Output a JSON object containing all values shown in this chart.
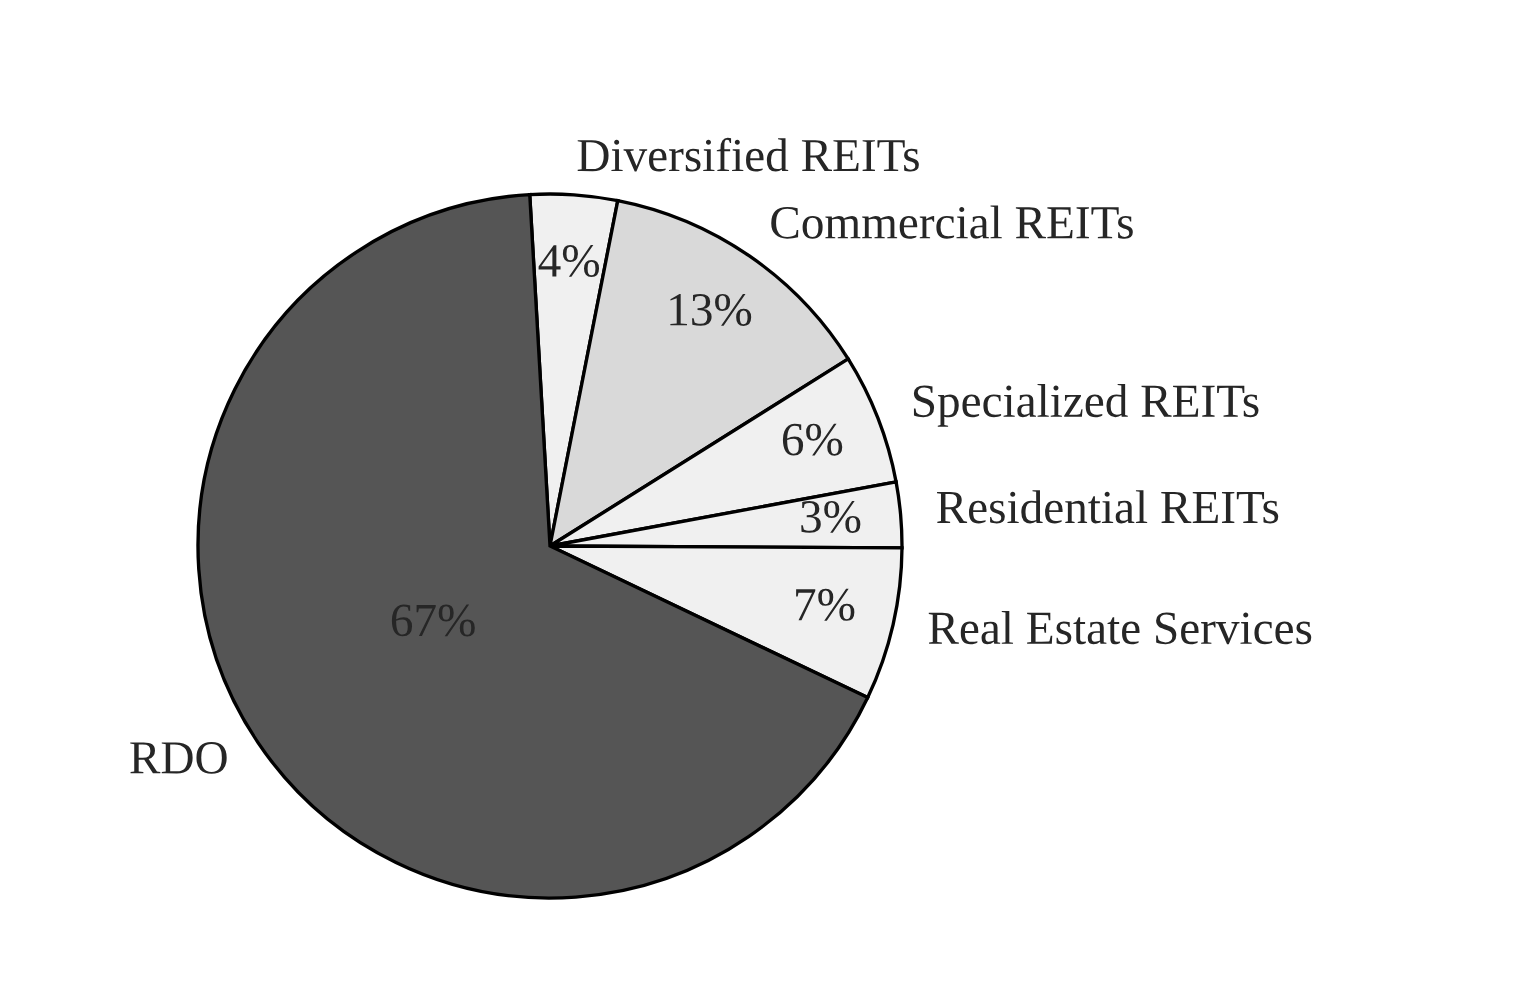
{
  "chart_data": {
    "type": "pie",
    "categories": [
      "Diversified REITs",
      "Commercial REITs",
      "Specialized REITs",
      "Residential REITs",
      "Real Estate Services",
      "RDO"
    ],
    "values": [
      4,
      13,
      6,
      3,
      7,
      67
    ],
    "value_labels": [
      "4%",
      "13%",
      "6%",
      "3%",
      "7%",
      "67%"
    ],
    "colors": [
      "#f0f0f0",
      "#d9d9d9",
      "#f0f0f0",
      "#f0f0f0",
      "#f0f0f0",
      "#555555"
    ]
  }
}
